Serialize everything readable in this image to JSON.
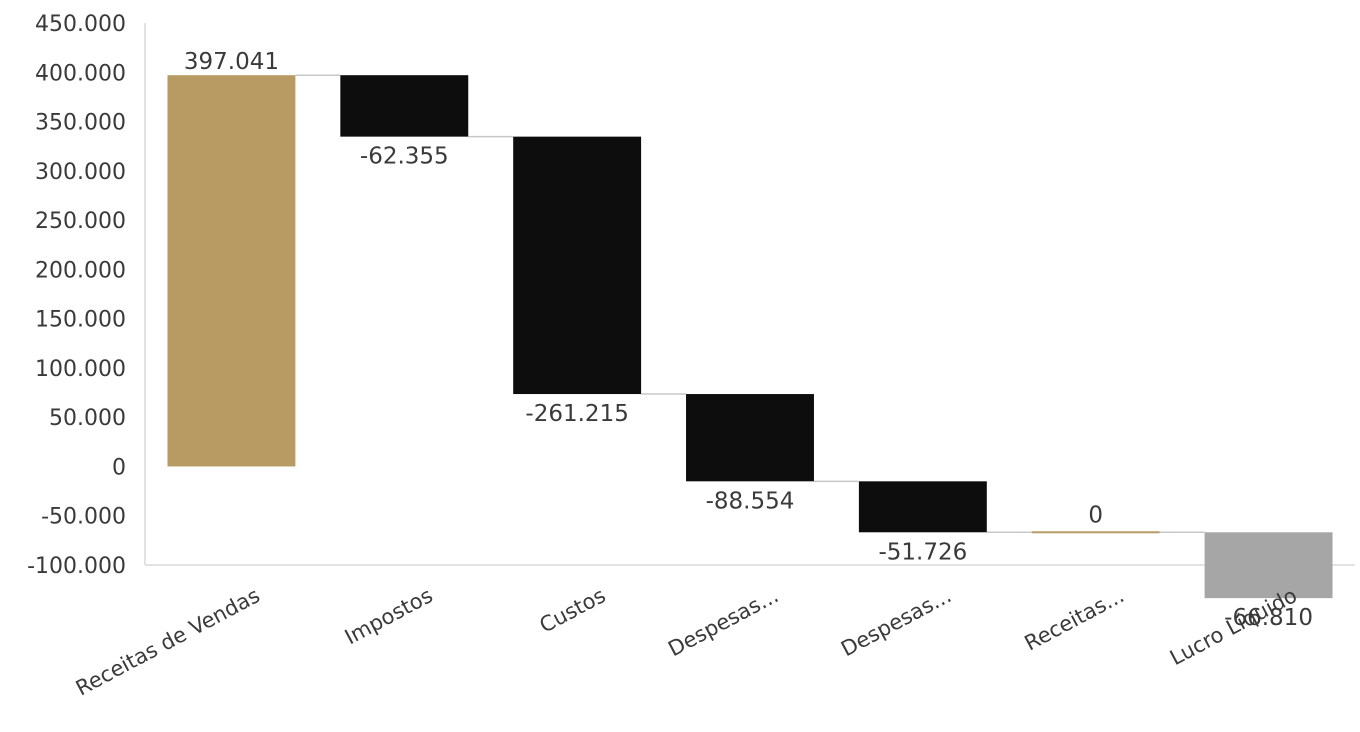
{
  "chart_data": {
    "type": "waterfall",
    "title": "",
    "xlabel": "",
    "ylabel": "",
    "ylim": [
      -100000,
      450000
    ],
    "yticks": [
      450000,
      400000,
      350000,
      300000,
      250000,
      200000,
      150000,
      100000,
      50000,
      0,
      -50000,
      -100000
    ],
    "ytick_labels": [
      "450.000",
      "400.000",
      "350.000",
      "300.000",
      "250.000",
      "200.000",
      "150.000",
      "100.000",
      "50.000",
      "0",
      "-50.000",
      "-100.000"
    ],
    "grid": false,
    "legend": "none",
    "colors": {
      "total": "#b89b62",
      "decrease": "#0d0d0d",
      "subtotal": "#a6a6a6",
      "connector": "#c8c8c8",
      "axis": "#d9d9d9"
    },
    "categories": [
      "Receitas de Vendas",
      "Impostos",
      "Custos",
      "Despesas...",
      "Despesas...",
      "Receitas...",
      "Lucro Líquido"
    ],
    "values": [
      397041,
      -62355,
      -261215,
      -88554,
      -51726,
      0,
      -66810
    ],
    "data_labels": [
      "397.041",
      "-62.355",
      "-261.215",
      "-88.554",
      "-51.726",
      "0",
      "-66.810"
    ],
    "bar_kinds": [
      "total",
      "decrease",
      "decrease",
      "decrease",
      "decrease",
      "increase",
      "subtotal"
    ]
  }
}
